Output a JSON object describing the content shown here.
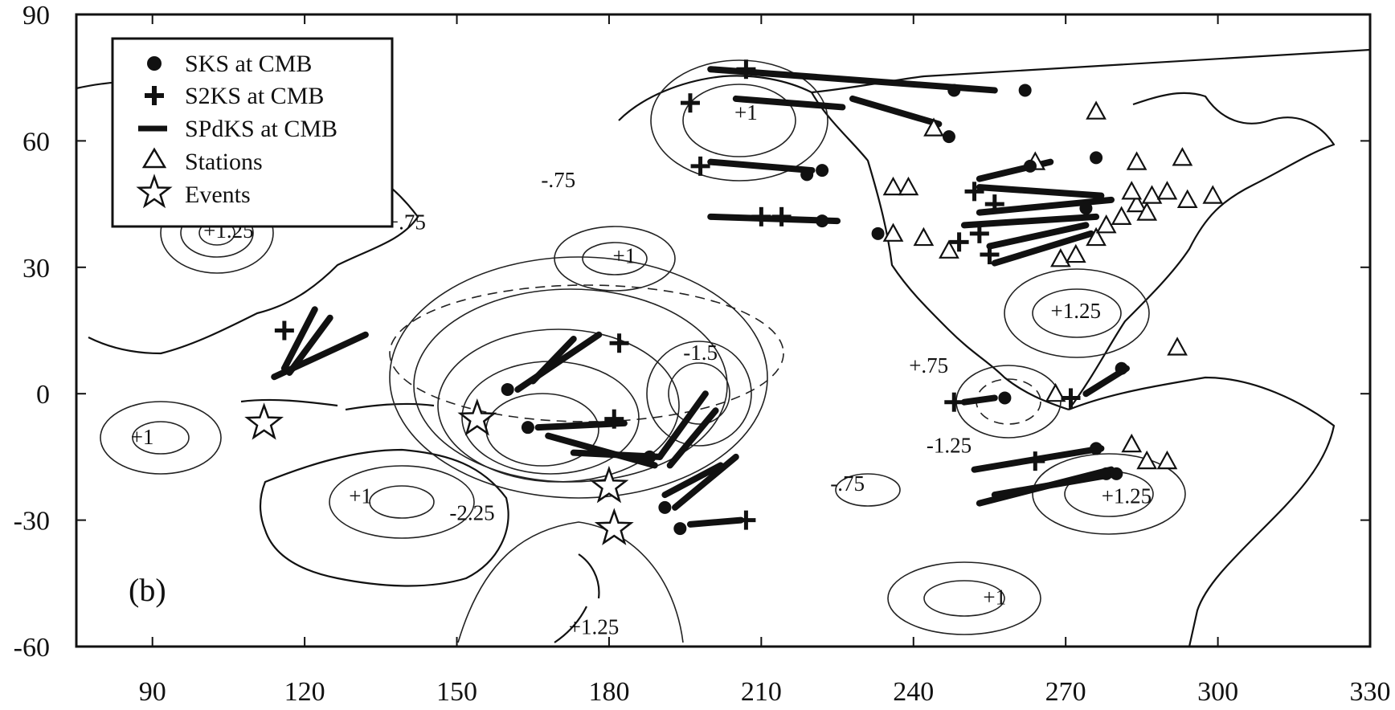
{
  "figure": {
    "panel_label": "(b)",
    "x_ticks": [
      90,
      120,
      150,
      180,
      210,
      240,
      270,
      300,
      330
    ],
    "y_ticks": [
      90,
      60,
      30,
      0,
      -30,
      -60
    ],
    "x_range": [
      75,
      330
    ],
    "y_range": [
      -60,
      90
    ],
    "colors": {
      "ink": "#111111",
      "background": "#ffffff"
    }
  },
  "legend": {
    "items": [
      {
        "symbol": "circle-icon",
        "label": "SKS at CMB"
      },
      {
        "symbol": "plus-icon",
        "label": "S2KS at CMB"
      },
      {
        "symbol": "dash-icon",
        "label": "SPdKS at CMB"
      },
      {
        "symbol": "triangle-icon",
        "label": "Stations"
      },
      {
        "symbol": "star-icon",
        "label": "Events"
      }
    ]
  },
  "contour_labels": [
    {
      "text": "+1.25",
      "lon": 105,
      "lat": 37
    },
    {
      "text": "+.75",
      "lon": 140,
      "lat": 39
    },
    {
      "text": "-.75",
      "lon": 170,
      "lat": 49
    },
    {
      "text": "+1",
      "lon": 183,
      "lat": 31
    },
    {
      "text": "+1",
      "lon": 207,
      "lat": 65
    },
    {
      "text": "-1.5",
      "lon": 198,
      "lat": 8
    },
    {
      "text": "+.75",
      "lon": 243,
      "lat": 5
    },
    {
      "text": "+1.25",
      "lon": 272,
      "lat": 18
    },
    {
      "text": "-1.25",
      "lon": 247,
      "lat": -14
    },
    {
      "text": "+1",
      "lon": 88,
      "lat": -12
    },
    {
      "text": "+1",
      "lon": 131,
      "lat": -26
    },
    {
      "text": "-2.25",
      "lon": 153,
      "lat": -30
    },
    {
      "text": "-.75",
      "lon": 227,
      "lat": -23
    },
    {
      "text": "+1.25",
      "lon": 282,
      "lat": -26
    },
    {
      "text": "+1",
      "lon": 256,
      "lat": -50
    },
    {
      "text": "+1.25",
      "lon": 177,
      "lat": -57
    }
  ],
  "events": [
    {
      "lon": 112,
      "lat": -7
    },
    {
      "lon": 154,
      "lat": -6
    },
    {
      "lon": 180,
      "lat": -22
    },
    {
      "lon": 181,
      "lat": -32
    }
  ],
  "stations": [
    {
      "lon": 244,
      "lat": 63
    },
    {
      "lon": 276,
      "lat": 67
    },
    {
      "lon": 264,
      "lat": 55
    },
    {
      "lon": 284,
      "lat": 55
    },
    {
      "lon": 293,
      "lat": 56
    },
    {
      "lon": 236,
      "lat": 49
    },
    {
      "lon": 239,
      "lat": 49
    },
    {
      "lon": 242,
      "lat": 37
    },
    {
      "lon": 236,
      "lat": 38
    },
    {
      "lon": 247,
      "lat": 34
    },
    {
      "lon": 269,
      "lat": 32
    },
    {
      "lon": 272,
      "lat": 33
    },
    {
      "lon": 276,
      "lat": 37
    },
    {
      "lon": 278,
      "lat": 40
    },
    {
      "lon": 281,
      "lat": 42
    },
    {
      "lon": 284,
      "lat": 45
    },
    {
      "lon": 287,
      "lat": 47
    },
    {
      "lon": 290,
      "lat": 48
    },
    {
      "lon": 283,
      "lat": 48
    },
    {
      "lon": 286,
      "lat": 43
    },
    {
      "lon": 294,
      "lat": 46
    },
    {
      "lon": 299,
      "lat": 47
    },
    {
      "lon": 292,
      "lat": 11
    },
    {
      "lon": 268,
      "lat": 0
    },
    {
      "lon": 283,
      "lat": -12
    },
    {
      "lon": 286,
      "lat": -16
    },
    {
      "lon": 290,
      "lat": -16
    }
  ],
  "sks": [
    {
      "lon": 219,
      "lat": 52
    },
    {
      "lon": 222,
      "lat": 53
    },
    {
      "lon": 222,
      "lat": 41
    },
    {
      "lon": 247,
      "lat": 61
    },
    {
      "lon": 233,
      "lat": 38
    },
    {
      "lon": 263,
      "lat": 54
    },
    {
      "lon": 276,
      "lat": 56
    },
    {
      "lon": 262,
      "lat": 72
    },
    {
      "lon": 248,
      "lat": 72
    },
    {
      "lon": 160,
      "lat": 1
    },
    {
      "lon": 164,
      "lat": -8
    },
    {
      "lon": 188,
      "lat": -15
    },
    {
      "lon": 191,
      "lat": -27
    },
    {
      "lon": 194,
      "lat": -32
    },
    {
      "lon": 258,
      "lat": -1
    },
    {
      "lon": 281,
      "lat": 6
    },
    {
      "lon": 276,
      "lat": -13
    },
    {
      "lon": 278,
      "lat": -19
    },
    {
      "lon": 280,
      "lat": -19
    },
    {
      "lon": 274,
      "lat": 44
    }
  ],
  "s2ks": [
    {
      "lon": 207,
      "lat": 77
    },
    {
      "lon": 196,
      "lat": 69
    },
    {
      "lon": 198,
      "lat": 54
    },
    {
      "lon": 210,
      "lat": 42
    },
    {
      "lon": 214,
      "lat": 42
    },
    {
      "lon": 252,
      "lat": 48
    },
    {
      "lon": 256,
      "lat": 45
    },
    {
      "lon": 253,
      "lat": 38
    },
    {
      "lon": 255,
      "lat": 33
    },
    {
      "lon": 249,
      "lat": 36
    },
    {
      "lon": 248,
      "lat": -2
    },
    {
      "lon": 271,
      "lat": -1
    },
    {
      "lon": 264,
      "lat": -16
    },
    {
      "lon": 181,
      "lat": -6
    },
    {
      "lon": 207,
      "lat": -30
    },
    {
      "lon": 116,
      "lat": 15
    },
    {
      "lon": 182,
      "lat": 12
    }
  ],
  "spdks": [
    {
      "lon1": 200,
      "lat1": 77,
      "lon2": 256,
      "lat2": 72
    },
    {
      "lon1": 205,
      "lat1": 70,
      "lon2": 226,
      "lat2": 68
    },
    {
      "lon1": 228,
      "lat1": 70,
      "lon2": 245,
      "lat2": 64
    },
    {
      "lon1": 200,
      "lat1": 55,
      "lon2": 220,
      "lat2": 53
    },
    {
      "lon1": 200,
      "lat1": 42,
      "lon2": 225,
      "lat2": 41
    },
    {
      "lon1": 253,
      "lat1": 49,
      "lon2": 277,
      "lat2": 47
    },
    {
      "lon1": 253,
      "lat1": 43,
      "lon2": 279,
      "lat2": 46
    },
    {
      "lon1": 250,
      "lat1": 40,
      "lon2": 276,
      "lat2": 42
    },
    {
      "lon1": 255,
      "lat1": 35,
      "lon2": 274,
      "lat2": 40
    },
    {
      "lon1": 256,
      "lat1": 31,
      "lon2": 275,
      "lat2": 38
    },
    {
      "lon1": 253,
      "lat1": 51,
      "lon2": 267,
      "lat2": 55
    },
    {
      "lon1": 162,
      "lat1": 1,
      "lon2": 178,
      "lat2": 14
    },
    {
      "lon1": 165,
      "lat1": 3,
      "lon2": 173,
      "lat2": 13
    },
    {
      "lon1": 166,
      "lat1": -8,
      "lon2": 183,
      "lat2": -7
    },
    {
      "lon1": 168,
      "lat1": -10,
      "lon2": 189,
      "lat2": -17
    },
    {
      "lon1": 173,
      "lat1": -14,
      "lon2": 190,
      "lat2": -15
    },
    {
      "lon1": 190,
      "lat1": -15,
      "lon2": 199,
      "lat2": 0
    },
    {
      "lon1": 192,
      "lat1": -17,
      "lon2": 201,
      "lat2": -4
    },
    {
      "lon1": 193,
      "lat1": -27,
      "lon2": 205,
      "lat2": -15
    },
    {
      "lon1": 191,
      "lat1": -24,
      "lon2": 202,
      "lat2": -17
    },
    {
      "lon1": 196,
      "lat1": -31,
      "lon2": 206,
      "lat2": -30
    },
    {
      "lon1": 114,
      "lat1": 4,
      "lon2": 132,
      "lat2": 14
    },
    {
      "lon1": 116,
      "lat1": 6,
      "lon2": 122,
      "lat2": 20
    },
    {
      "lon1": 117,
      "lat1": 5,
      "lon2": 125,
      "lat2": 18
    },
    {
      "lon1": 250,
      "lat1": -2,
      "lon2": 256,
      "lat2": -1
    },
    {
      "lon1": 274,
      "lat1": 0,
      "lon2": 282,
      "lat2": 6
    },
    {
      "lon1": 252,
      "lat1": -18,
      "lon2": 277,
      "lat2": -13
    },
    {
      "lon1": 253,
      "lat1": -26,
      "lon2": 279,
      "lat2": -18
    },
    {
      "lon1": 256,
      "lat1": -24,
      "lon2": 280,
      "lat2": -19
    }
  ]
}
